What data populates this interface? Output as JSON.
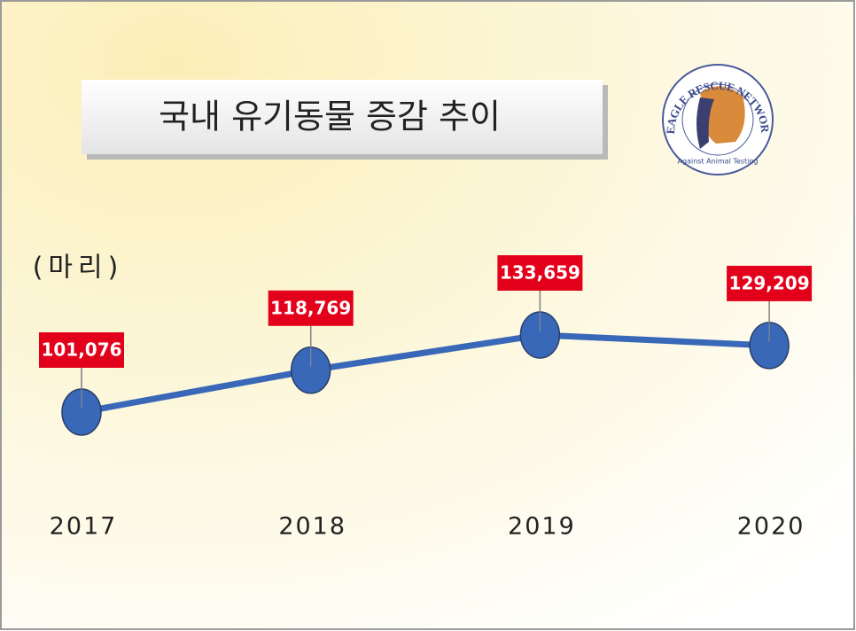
{
  "chart_data": {
    "type": "line",
    "title": "국내 유기동물 증감 추이",
    "unit_label": "(마리)",
    "categories": [
      "2017",
      "2018",
      "2019",
      "2020"
    ],
    "series": [
      {
        "name": null,
        "color": "#3a68b8",
        "values": [
          101076,
          118769,
          133659,
          129209
        ],
        "value_labels": [
          "101,076",
          "118,769",
          "133,659",
          "129,209"
        ]
      }
    ],
    "label_color": "#e3001b",
    "grid": false
  },
  "logo": {
    "name": "BEAGLE RESCUE NETWORK",
    "tagline": "Against Animal Testing"
  }
}
